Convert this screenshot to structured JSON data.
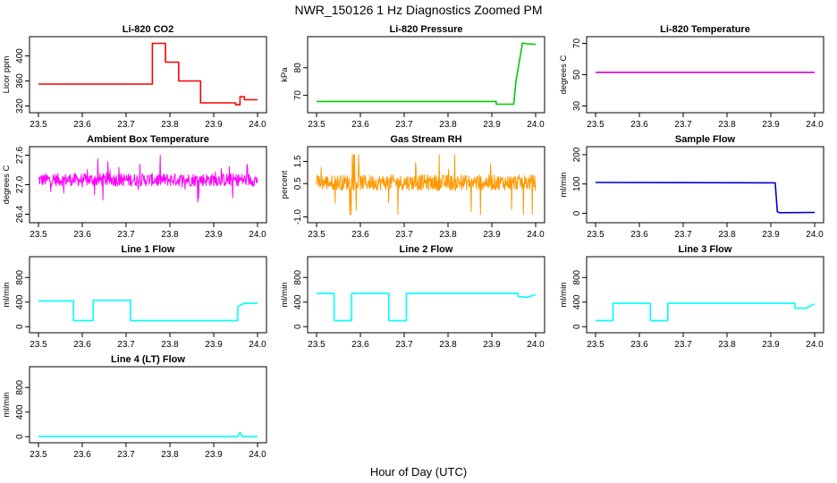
{
  "figure": {
    "title": "NWR_150126  1 Hz Diagnostics Zoomed PM",
    "xlabel": "Hour of Day (UTC)"
  },
  "chart_data": [
    {
      "type": "line",
      "title": "Li-820 CO2",
      "ylabel": "Licor ppm",
      "color": "#ff0000",
      "xlim": [
        23.5,
        24.0
      ],
      "ylim": [
        315,
        425
      ],
      "xticks": [
        "23.5",
        "23.6",
        "23.7",
        "23.8",
        "23.9",
        "24.0"
      ],
      "yticks": [
        320,
        360,
        400
      ],
      "ytick_labels": [
        "320",
        "360",
        "400"
      ],
      "x": [
        23.5,
        23.76,
        23.76,
        23.79,
        23.79,
        23.82,
        23.82,
        23.87,
        23.87,
        23.95,
        23.95,
        23.96,
        23.96,
        23.97,
        23.97,
        24.0
      ],
      "y": [
        355,
        355,
        420,
        420,
        390,
        390,
        360,
        360,
        325,
        325,
        322,
        322,
        335,
        335,
        330,
        330
      ]
    },
    {
      "type": "line",
      "title": "Li-820 Pressure",
      "ylabel": "kPa",
      "color": "#00cc00",
      "xlim": [
        23.5,
        24.0
      ],
      "ylim": [
        65,
        90
      ],
      "xticks": [
        "23.5",
        "23.6",
        "23.7",
        "23.8",
        "23.9",
        "24.0"
      ],
      "yticks": [
        70,
        80
      ],
      "ytick_labels": [
        "70",
        "80"
      ],
      "x": [
        23.5,
        23.91,
        23.91,
        23.95,
        23.955,
        23.97,
        23.98,
        24.0
      ],
      "y": [
        67.8,
        67.8,
        66.8,
        66.8,
        75,
        89,
        88.7,
        88.5
      ]
    },
    {
      "type": "line",
      "title": "Li-820 Temperature",
      "ylabel": "degrees C",
      "color": "#cc00cc",
      "xlim": [
        23.5,
        24.0
      ],
      "ylim": [
        28,
        72
      ],
      "xticks": [
        "23.5",
        "23.6",
        "23.7",
        "23.8",
        "23.9",
        "24.0"
      ],
      "yticks": [
        30,
        50,
        70
      ],
      "ytick_labels": [
        "30",
        "50",
        "70"
      ],
      "x": [
        23.5,
        24.0
      ],
      "y": [
        51.5,
        51.5
      ]
    },
    {
      "type": "line",
      "title": "Ambient Box Temperature",
      "ylabel": "degrees C",
      "color": "#ff00ff",
      "xlim": [
        23.5,
        24.0
      ],
      "ylim": [
        26.3,
        27.7
      ],
      "xticks": [
        "23.5",
        "23.6",
        "23.7",
        "23.8",
        "23.9",
        "24.0"
      ],
      "yticks": [
        26.4,
        27.0,
        27.6
      ],
      "ytick_labels": [
        "26.4",
        "27.0",
        "27.6"
      ],
      "noise": {
        "center": 27.1,
        "spread": 0.13,
        "min": 26.4,
        "max": 27.6,
        "spikes": 0.18
      },
      "x": [
        23.5,
        24.0
      ],
      "y": [
        27.1,
        27.1
      ]
    },
    {
      "type": "line",
      "title": "Gas Stream RH",
      "ylabel": "percent",
      "color": "#ff9900",
      "xlim": [
        23.5,
        24.0
      ],
      "ylim": [
        -1.1,
        2.0
      ],
      "xticks": [
        "23.5",
        "23.6",
        "23.7",
        "23.8",
        "23.9",
        "24.0"
      ],
      "yticks": [
        -1.0,
        0.5,
        1.5
      ],
      "ytick_labels": [
        "-1.0",
        "0.5",
        "1.5"
      ],
      "noise": {
        "center": 0.55,
        "spread": 0.35,
        "min": -0.9,
        "max": 1.8,
        "spikes": 0.8
      },
      "x": [
        23.5,
        24.0
      ],
      "y": [
        0.55,
        0.55
      ]
    },
    {
      "type": "line",
      "title": "Sample Flow",
      "ylabel": "ml/min",
      "color": "#0000cc",
      "xlim": [
        23.5,
        24.0
      ],
      "ylim": [
        -20,
        215
      ],
      "xticks": [
        "23.5",
        "23.6",
        "23.7",
        "23.8",
        "23.9",
        "24.0"
      ],
      "yticks": [
        0,
        100,
        200
      ],
      "ytick_labels": [
        "0",
        "100",
        "200"
      ],
      "x": [
        23.5,
        23.91,
        23.915,
        23.92,
        24.0
      ],
      "y": [
        105,
        104,
        5,
        2,
        3
      ]
    },
    {
      "type": "line",
      "title": "Line 1 Flow",
      "ylabel": "ml/min",
      "color": "#00ffff",
      "xlim": [
        23.5,
        24.0
      ],
      "ylim": [
        -40,
        1080
      ],
      "xticks": [
        "23.5",
        "23.6",
        "23.7",
        "23.8",
        "23.9",
        "24.0"
      ],
      "yticks": [
        0,
        400,
        800
      ],
      "ytick_labels": [
        "0",
        "400",
        "800"
      ],
      "x": [
        23.5,
        23.58,
        23.58,
        23.625,
        23.625,
        23.71,
        23.71,
        23.955,
        23.955,
        23.96,
        23.97,
        24.0
      ],
      "y": [
        420,
        420,
        100,
        100,
        430,
        430,
        100,
        100,
        320,
        350,
        380,
        380
      ]
    },
    {
      "type": "line",
      "title": "Line 2 Flow",
      "ylabel": "ml/min",
      "color": "#00ffff",
      "xlim": [
        23.5,
        24.0
      ],
      "ylim": [
        -40,
        1080
      ],
      "xticks": [
        "23.5",
        "23.6",
        "23.7",
        "23.8",
        "23.9",
        "24.0"
      ],
      "yticks": [
        0,
        400,
        800
      ],
      "ytick_labels": [
        "0",
        "400",
        "800"
      ],
      "x": [
        23.5,
        23.54,
        23.54,
        23.58,
        23.58,
        23.665,
        23.665,
        23.705,
        23.705,
        23.96,
        23.96,
        23.98,
        24.0
      ],
      "y": [
        540,
        540,
        100,
        100,
        540,
        540,
        100,
        100,
        540,
        540,
        490,
        480,
        520
      ]
    },
    {
      "type": "line",
      "title": "Line 3 Flow",
      "ylabel": "ml/min",
      "color": "#00ffff",
      "xlim": [
        23.5,
        24.0
      ],
      "ylim": [
        -40,
        1080
      ],
      "xticks": [
        "23.5",
        "23.6",
        "23.7",
        "23.8",
        "23.9",
        "24.0"
      ],
      "yticks": [
        0,
        400,
        800
      ],
      "ytick_labels": [
        "0",
        "400",
        "800"
      ],
      "x": [
        23.5,
        23.54,
        23.54,
        23.625,
        23.625,
        23.665,
        23.665,
        23.955,
        23.955,
        23.98,
        24.0
      ],
      "y": [
        100,
        100,
        380,
        380,
        100,
        100,
        380,
        380,
        300,
        300,
        370
      ]
    },
    {
      "type": "line",
      "title": "Line 4 (LT) Flow",
      "ylabel": "ml/min",
      "color": "#00ffff",
      "xlim": [
        23.5,
        24.0
      ],
      "ylim": [
        -40,
        1080
      ],
      "xticks": [
        "23.5",
        "23.6",
        "23.7",
        "23.8",
        "23.9",
        "24.0"
      ],
      "yticks": [
        0,
        400,
        800
      ],
      "ytick_labels": [
        "0",
        "400",
        "800"
      ],
      "x": [
        23.5,
        23.955,
        23.96,
        23.965,
        24.0
      ],
      "y": [
        5,
        5,
        70,
        5,
        5
      ]
    }
  ]
}
